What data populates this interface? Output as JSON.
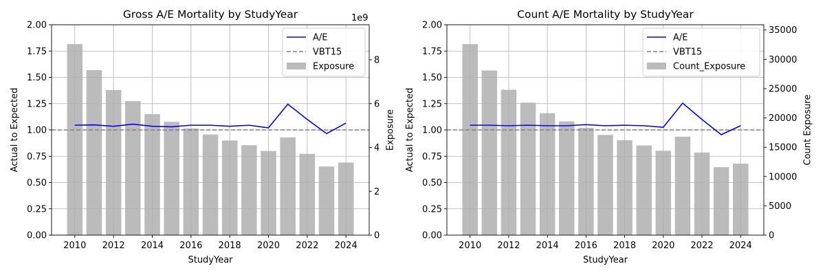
{
  "colors": {
    "ae_line": "#0000ff",
    "baseline": "#808080",
    "bar": "#bbbbbb",
    "grid": "#b0b0b0"
  },
  "chart_data": [
    {
      "type": "bar",
      "title": "Gross A/E Mortality by StudyYear",
      "xlabel": "StudyYear",
      "ylabel": "Actual to Expected",
      "y2label": "Exposure",
      "y2_offset_text": "1e9",
      "x": [
        2010,
        2011,
        2012,
        2013,
        2014,
        2015,
        2016,
        2017,
        2018,
        2019,
        2020,
        2021,
        2022,
        2023,
        2024
      ],
      "xticks": [
        "2010",
        "2012",
        "2014",
        "2016",
        "2018",
        "2020",
        "2022",
        "2024"
      ],
      "xlim": [
        2008.8,
        2025.2
      ],
      "ylim": [
        0,
        2
      ],
      "yticks": [
        "0.00",
        "0.25",
        "0.50",
        "0.75",
        "1.00",
        "1.25",
        "1.50",
        "1.75",
        "2.00"
      ],
      "y2lim": [
        0,
        9.6
      ],
      "y2ticks": [
        "0",
        "2",
        "4",
        "6",
        "8"
      ],
      "grid": true,
      "legend_position": "top-right",
      "series": [
        {
          "name": "A/E",
          "kind": "line",
          "axis": "left",
          "values": [
            1.045,
            1.048,
            1.035,
            1.055,
            1.035,
            1.03,
            1.045,
            1.045,
            1.035,
            1.045,
            1.02,
            1.245,
            1.1,
            0.965,
            1.065
          ]
        },
        {
          "name": "VBT15",
          "kind": "hline",
          "axis": "left",
          "value": 1.0
        },
        {
          "name": "Exposure",
          "kind": "bar",
          "axis": "right",
          "units": "1e9",
          "values": [
            8.72,
            7.53,
            6.62,
            6.12,
            5.52,
            5.17,
            4.87,
            4.59,
            4.32,
            4.1,
            3.84,
            4.46,
            3.71,
            3.13,
            3.31
          ]
        }
      ]
    },
    {
      "type": "bar",
      "title": "Count A/E Mortality by StudyYear",
      "xlabel": "StudyYear",
      "ylabel": "Actual to Expected",
      "y2label": "Count Exposure",
      "x": [
        2010,
        2011,
        2012,
        2013,
        2014,
        2015,
        2016,
        2017,
        2018,
        2019,
        2020,
        2021,
        2022,
        2023,
        2024
      ],
      "xticks": [
        "2010",
        "2012",
        "2014",
        "2016",
        "2018",
        "2020",
        "2022",
        "2024"
      ],
      "xlim": [
        2008.8,
        2025.2
      ],
      "ylim": [
        0,
        2
      ],
      "yticks": [
        "0.00",
        "0.25",
        "0.50",
        "0.75",
        "1.00",
        "1.25",
        "1.50",
        "1.75",
        "2.00"
      ],
      "y2lim": [
        0,
        35900
      ],
      "y2ticks": [
        "0",
        "5000",
        "10000",
        "15000",
        "20000",
        "25000",
        "30000",
        "35000"
      ],
      "grid": true,
      "legend_position": "top-right",
      "series": [
        {
          "name": "A/E",
          "kind": "line",
          "axis": "left",
          "values": [
            1.045,
            1.045,
            1.04,
            1.045,
            1.04,
            1.04,
            1.05,
            1.04,
            1.045,
            1.04,
            1.025,
            1.255,
            1.1,
            0.955,
            1.04
          ]
        },
        {
          "name": "VBT15",
          "kind": "hline",
          "axis": "left",
          "value": 1.0
        },
        {
          "name": "Count_Exposure",
          "kind": "bar",
          "axis": "right",
          "values": [
            32600,
            28100,
            24800,
            22600,
            20800,
            19400,
            18300,
            17100,
            16200,
            15300,
            14400,
            16800,
            14100,
            11600,
            12200
          ]
        }
      ]
    }
  ]
}
